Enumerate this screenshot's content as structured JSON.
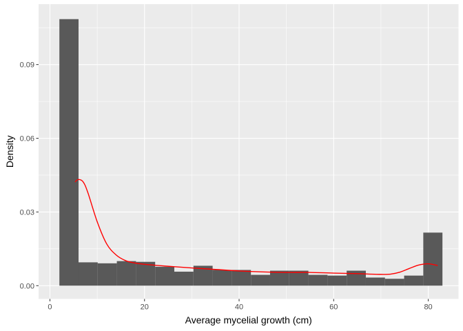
{
  "chart_data": {
    "type": "bar",
    "xlabel": "Average mycelial growth (cm)",
    "ylabel": "Density",
    "xlim": [
      -2.4,
      86.4
    ],
    "ylim": [
      -0.0054,
      0.1146
    ],
    "x_ticks": [
      0,
      20,
      40,
      60,
      80
    ],
    "x_tick_labels": [
      "0",
      "20",
      "40",
      "60",
      "80"
    ],
    "y_ticks": [
      0.0,
      0.03,
      0.06,
      0.09
    ],
    "y_tick_labels": [
      "0.00",
      "0.03",
      "0.06",
      "0.09"
    ],
    "grid": true,
    "bin_width": 4.05,
    "bins": [
      {
        "x0": 2.0,
        "x1": 6.05,
        "density": 0.1085
      },
      {
        "x0": 6.05,
        "x1": 10.1,
        "density": 0.0095
      },
      {
        "x0": 10.1,
        "x1": 14.15,
        "density": 0.0091
      },
      {
        "x0": 14.15,
        "x1": 18.2,
        "density": 0.01
      },
      {
        "x0": 18.2,
        "x1": 22.25,
        "density": 0.0097
      },
      {
        "x0": 22.25,
        "x1": 26.3,
        "density": 0.0077
      },
      {
        "x0": 26.3,
        "x1": 30.35,
        "density": 0.0057
      },
      {
        "x0": 30.35,
        "x1": 34.4,
        "density": 0.0081
      },
      {
        "x0": 34.4,
        "x1": 38.45,
        "density": 0.0064
      },
      {
        "x0": 38.45,
        "x1": 42.5,
        "density": 0.0064
      },
      {
        "x0": 42.5,
        "x1": 46.55,
        "density": 0.0044
      },
      {
        "x0": 46.55,
        "x1": 50.6,
        "density": 0.0061
      },
      {
        "x0": 50.6,
        "x1": 54.65,
        "density": 0.0061
      },
      {
        "x0": 54.65,
        "x1": 58.7,
        "density": 0.0044
      },
      {
        "x0": 58.7,
        "x1": 62.75,
        "density": 0.0041
      },
      {
        "x0": 62.75,
        "x1": 66.8,
        "density": 0.0061
      },
      {
        "x0": 66.8,
        "x1": 70.85,
        "density": 0.0033
      },
      {
        "x0": 70.85,
        "x1": 74.9,
        "density": 0.0028
      },
      {
        "x0": 74.9,
        "x1": 78.95,
        "density": 0.0041
      },
      {
        "x0": 78.95,
        "x1": 83.0,
        "density": 0.0216
      }
    ],
    "density_curve": {
      "x": [
        5.3,
        6.0,
        7.0,
        8.0,
        10.0,
        12.0,
        14.0,
        16.0,
        18.0,
        20.0,
        25.0,
        30.0,
        35.0,
        40.0,
        45.0,
        50.0,
        55.0,
        60.0,
        65.0,
        68.0,
        70.0,
        72.0,
        74.0,
        76.0,
        78.0,
        80.0,
        82.0
      ],
      "y": [
        0.0422,
        0.0432,
        0.0423,
        0.038,
        0.026,
        0.017,
        0.0125,
        0.0102,
        0.0092,
        0.0087,
        0.0079,
        0.0072,
        0.0066,
        0.006,
        0.0056,
        0.0054,
        0.0054,
        0.0051,
        0.0049,
        0.0047,
        0.0046,
        0.0047,
        0.0055,
        0.007,
        0.0084,
        0.0089,
        0.0082
      ]
    },
    "colors": {
      "panel": "#EBEBEB",
      "grid_major": "#FFFFFF",
      "bar_fill": "#595959",
      "curve": "#FF0000",
      "tick": "#333333",
      "tick_label": "#4D4D4D"
    }
  }
}
